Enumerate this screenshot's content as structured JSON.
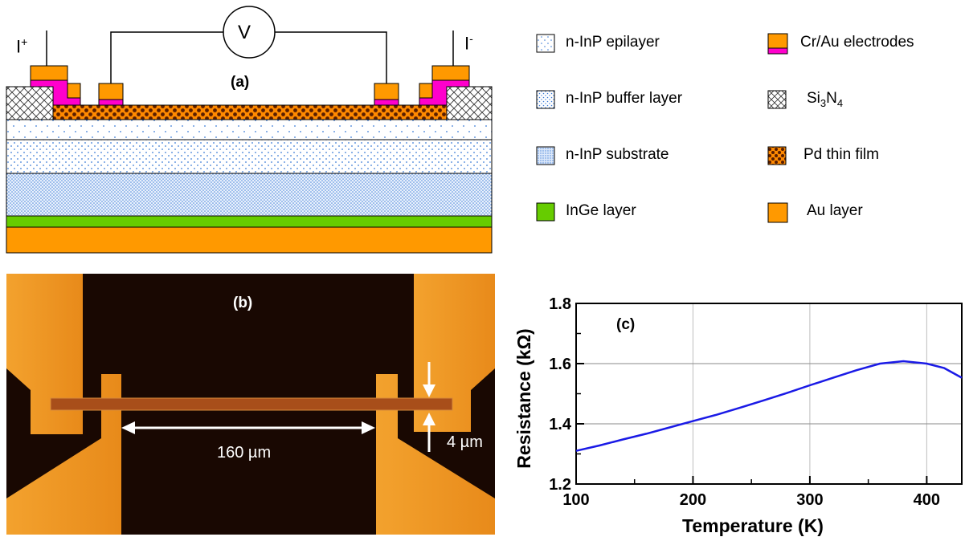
{
  "panel_a": {
    "label": "(a)",
    "current_plus": "I",
    "current_plus_sup": "+",
    "current_minus": "I",
    "current_minus_sup": "-",
    "voltmeter": "V",
    "colors": {
      "gold": "#FF9900",
      "magenta": "#FF00CC",
      "green": "#66CC00",
      "dot": "#3B7BD6",
      "pd_dark": "#5A1E00"
    }
  },
  "legend": {
    "epilayer": "n-InP epilayer",
    "buffer": "n-InP buffer layer",
    "substrate": "n-InP substrate",
    "inge": "InGe layer",
    "electrodes": "Cr/Au electrodes",
    "si3n4_si": "Si",
    "si3n4_sub3": "3",
    "si3n4_n": "N",
    "si3n4_sub4": "4",
    "pd": "Pd thin film",
    "au": "Au layer"
  },
  "panel_b": {
    "label": "(b)",
    "length": "160 µm",
    "width": "4 µm"
  },
  "chart_data": {
    "type": "line",
    "label": "(c)",
    "xlabel": "Temperature (K)",
    "ylabel": "Resistance (kΩ)",
    "xlim": [
      100,
      430
    ],
    "ylim": [
      1.2,
      1.8
    ],
    "x_ticks": [
      "100",
      "200",
      "300",
      "400"
    ],
    "y_ticks": [
      "1.2",
      "1.4",
      "1.6",
      "1.8"
    ],
    "grid": true,
    "line_color": "#1A1AE6",
    "series": [
      {
        "x": [
          100,
          120,
          140,
          160,
          180,
          200,
          220,
          240,
          260,
          280,
          300,
          320,
          340,
          360,
          380,
          400,
          415,
          430
        ],
        "values": [
          1.31,
          1.328,
          1.348,
          1.367,
          1.388,
          1.409,
          1.43,
          1.453,
          1.477,
          1.502,
          1.528,
          1.553,
          1.578,
          1.6,
          1.608,
          1.6,
          1.585,
          1.553
        ]
      }
    ]
  }
}
